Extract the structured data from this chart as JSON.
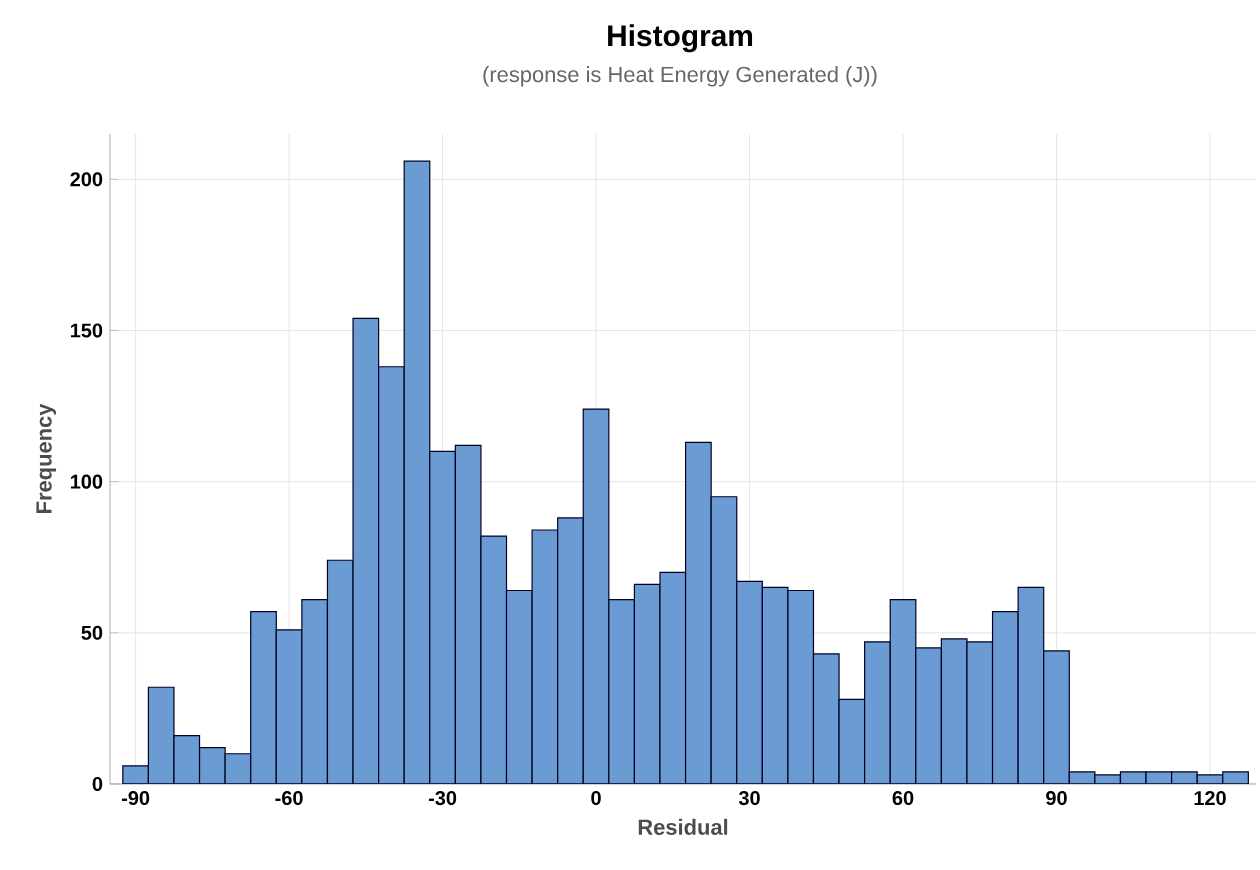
{
  "chart_data": {
    "type": "histogram",
    "title": "Histogram",
    "subtitle": "(response is Heat Energy Generated (J))",
    "xlabel": "Residual",
    "ylabel": "Frequency",
    "bins": [
      -92.5,
      -87.5,
      -82.5,
      -77.5,
      -72.5,
      -67.5,
      -62.5,
      -57.5,
      -52.5,
      -47.5,
      -42.5,
      -37.5,
      -32.5,
      -27.5,
      -22.5,
      -17.5,
      -12.5,
      -7.5,
      -2.5,
      2.5,
      7.5,
      12.5,
      17.5,
      22.5,
      27.5,
      32.5,
      37.5,
      42.5,
      47.5,
      52.5,
      57.5,
      62.5,
      67.5,
      72.5,
      77.5,
      82.5,
      87.5,
      92.5,
      97.5,
      102.5,
      107.5,
      112.5,
      117.5,
      122.5,
      127.5
    ],
    "values": [
      6,
      32,
      16,
      12,
      10,
      57,
      51,
      61,
      74,
      154,
      138,
      206,
      110,
      112,
      82,
      64,
      84,
      88,
      124,
      61,
      66,
      70,
      113,
      95,
      67,
      65,
      64,
      43,
      28,
      47,
      61,
      45,
      48,
      47,
      57,
      65,
      44,
      4,
      3,
      4,
      4,
      4,
      3,
      4
    ],
    "color": "#6a9bd3",
    "xlim": [
      -95,
      129
    ],
    "ylim": [
      0,
      215
    ],
    "xticks": [
      -90,
      -60,
      -30,
      0,
      30,
      60,
      90,
      120
    ],
    "yticks": [
      0,
      50,
      100,
      150,
      200
    ],
    "grid": true
  }
}
